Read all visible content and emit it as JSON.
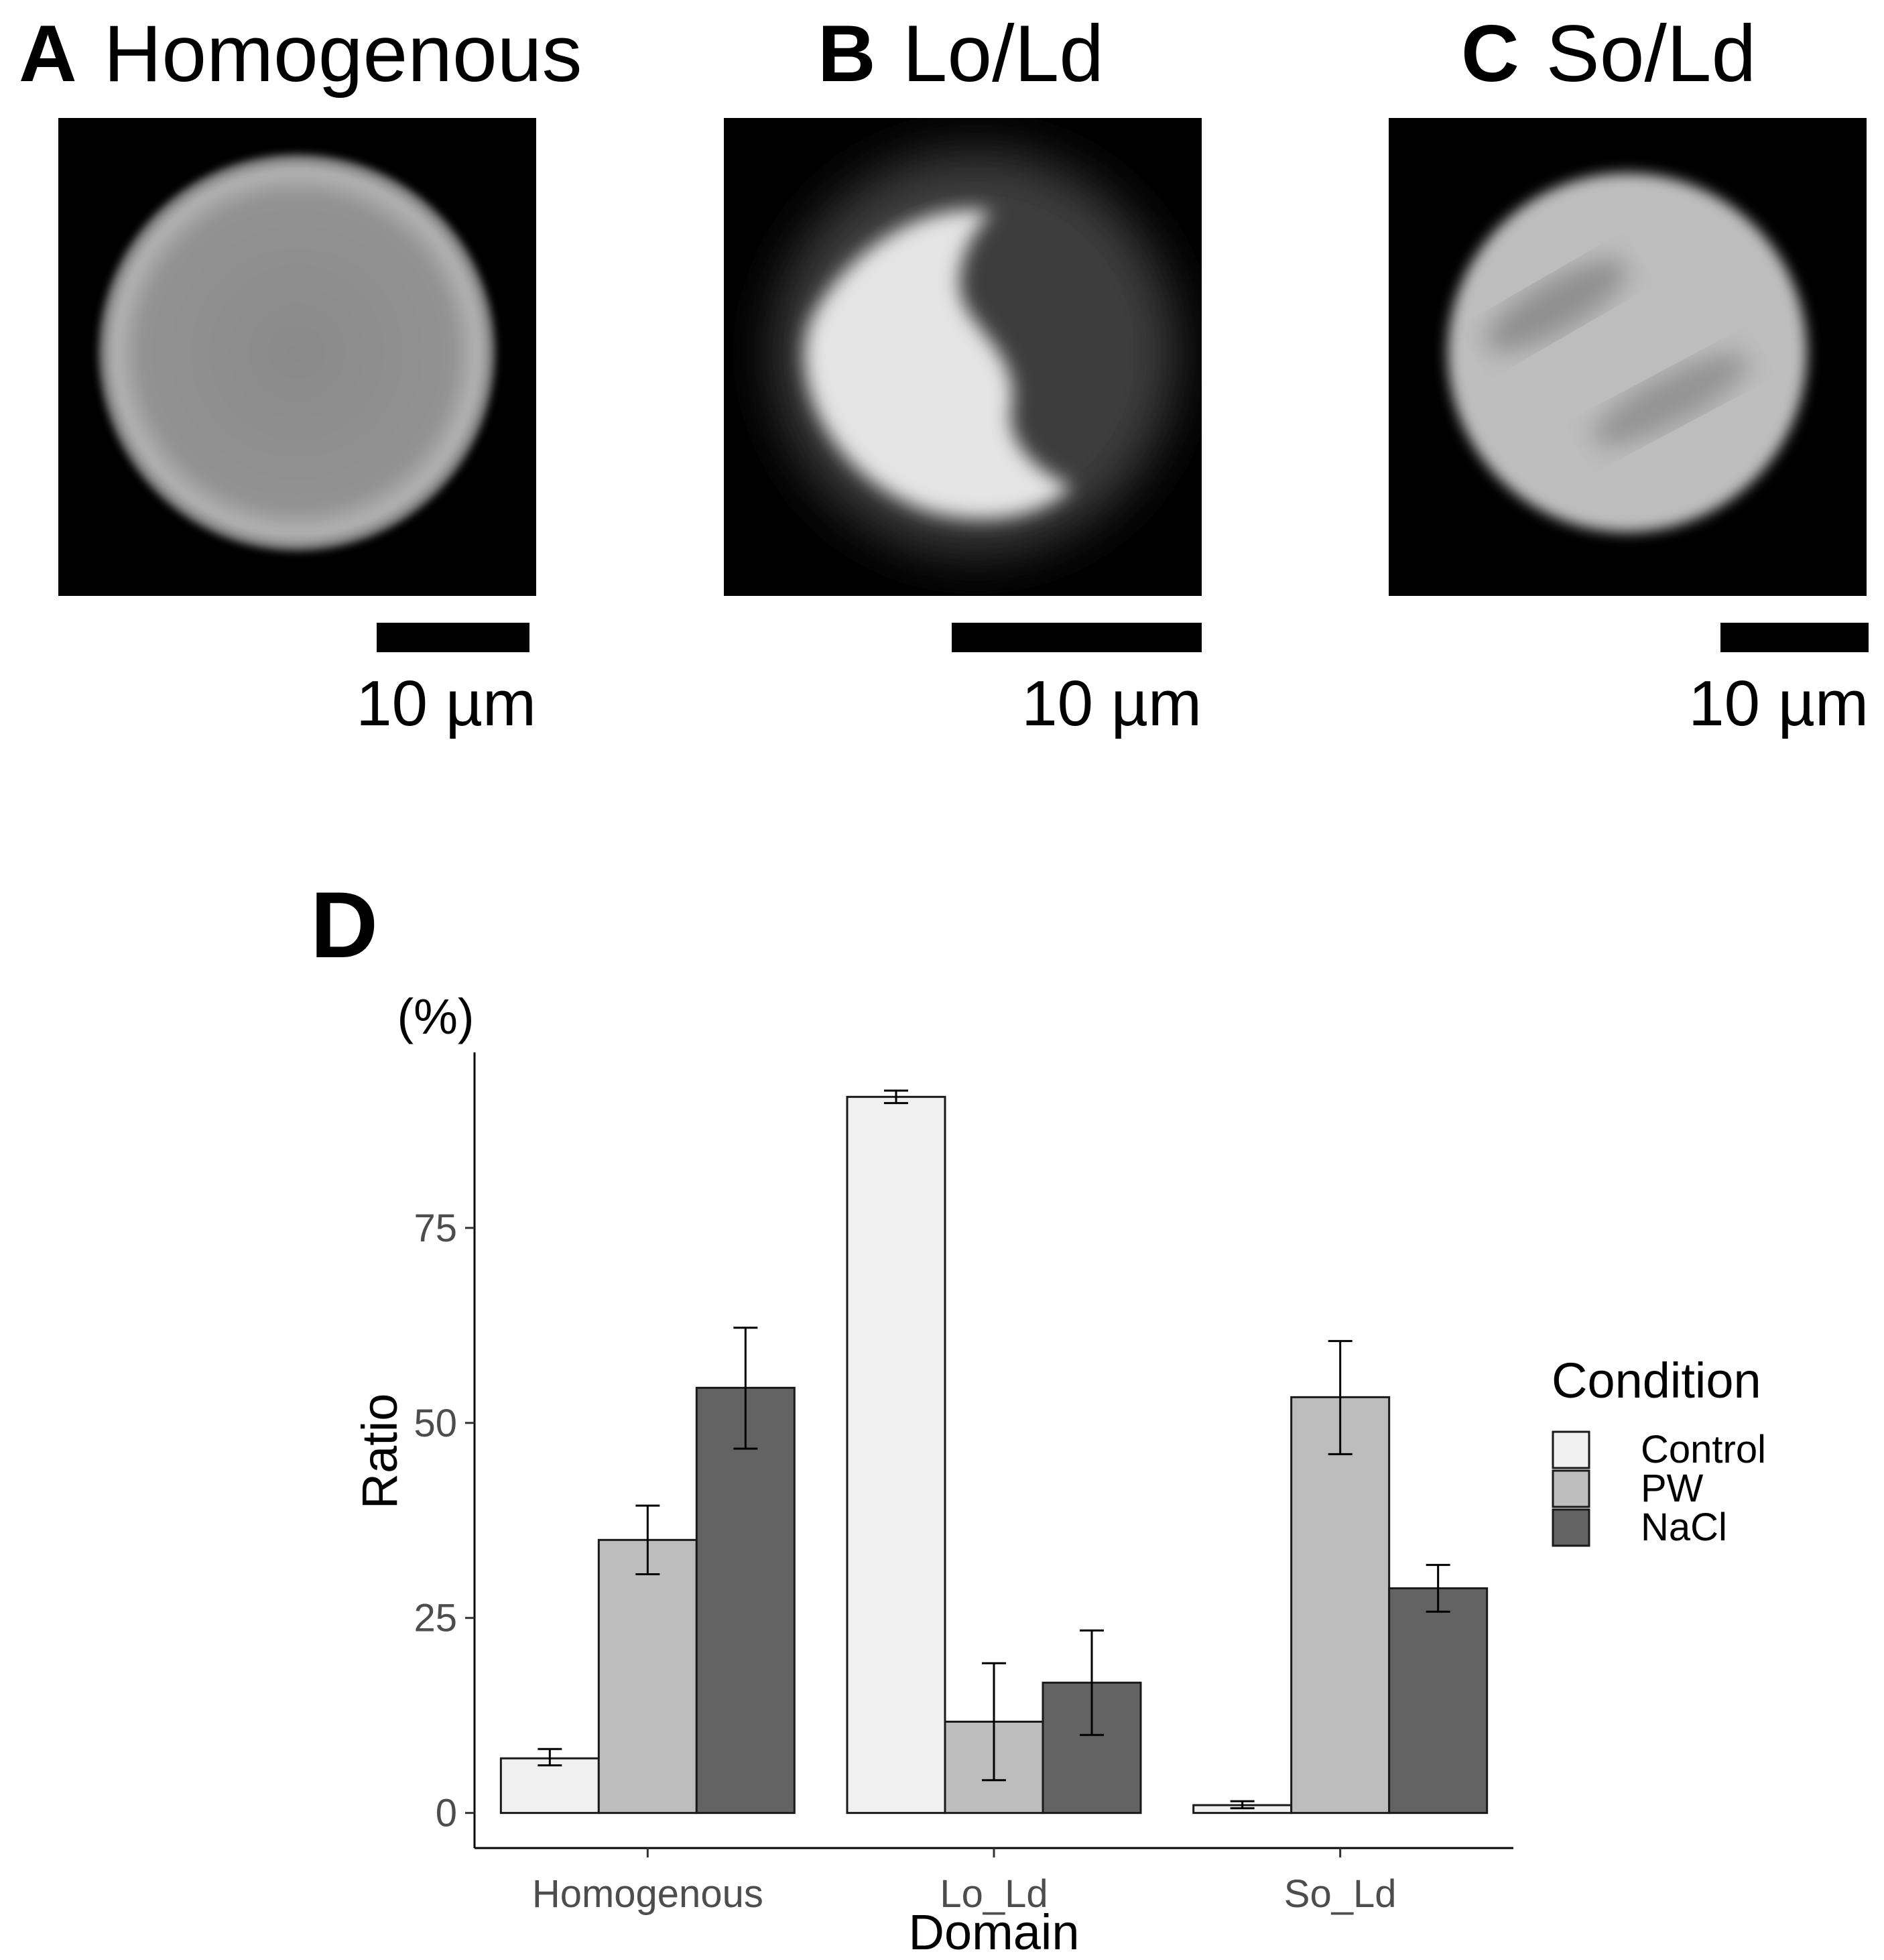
{
  "panels": [
    {
      "letter": "A",
      "title": "Homogenous",
      "scale_label": "10 µm"
    },
    {
      "letter": "B",
      "title": "Lo/Ld",
      "scale_label": "10 µm"
    },
    {
      "letter": "C",
      "title": "So/Ld",
      "scale_label": "10 µm"
    }
  ],
  "panel_d_letter": "D",
  "colors": {
    "control": "#f0f0f0",
    "pw": "#bdbdbd",
    "nacl": "#636363",
    "bar_outline": "#1a1a1a",
    "axis_text": "#4d4d4d"
  },
  "chart_data": {
    "type": "bar",
    "title": "",
    "unit_label": "(%)",
    "xlabel": "Domain",
    "ylabel": "Ratio",
    "categories": [
      "Homogenous",
      "Lo_Ld",
      "So_Ld"
    ],
    "yticks": [
      0,
      25,
      50,
      75
    ],
    "ylim": [
      -4.5,
      97.5
    ],
    "grid": false,
    "legend_title": "Condition",
    "legend_position": "right",
    "series": [
      {
        "name": "Control",
        "values": [
          7.0,
          91.8,
          1.0
        ],
        "err_low": [
          6.1,
          91.0,
          0.6
        ],
        "err_high": [
          8.2,
          92.6,
          1.5
        ]
      },
      {
        "name": "PW",
        "values": [
          35.0,
          11.7,
          53.3
        ],
        "err_low": [
          30.6,
          4.2,
          46.0
        ],
        "err_high": [
          39.4,
          19.2,
          60.5
        ]
      },
      {
        "name": "NaCl",
        "values": [
          54.5,
          16.7,
          28.8
        ],
        "err_low": [
          46.7,
          10.0,
          25.8
        ],
        "err_high": [
          62.2,
          23.4,
          31.8
        ]
      }
    ]
  }
}
